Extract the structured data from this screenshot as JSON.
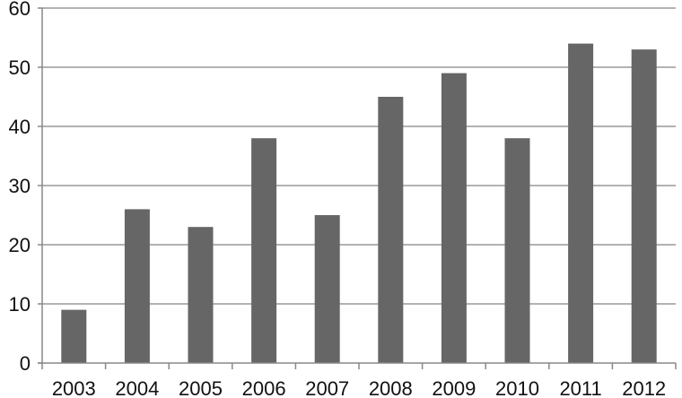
{
  "chart_data": {
    "type": "bar",
    "title": "",
    "xlabel": "",
    "ylabel": "",
    "categories": [
      "2003",
      "2004",
      "2005",
      "2006",
      "2007",
      "2008",
      "2009",
      "2010",
      "2011",
      "2012"
    ],
    "values": [
      9,
      26,
      23,
      38,
      25,
      45,
      49,
      38,
      54,
      53
    ],
    "ylim": [
      0,
      60
    ],
    "yticks": [
      0,
      10,
      20,
      30,
      40,
      50,
      60
    ],
    "grid": "horizontal",
    "legend": "none",
    "colors": {
      "bar": "#666666",
      "grid": "#999999",
      "axis": "#888888",
      "text": "#111111"
    }
  }
}
